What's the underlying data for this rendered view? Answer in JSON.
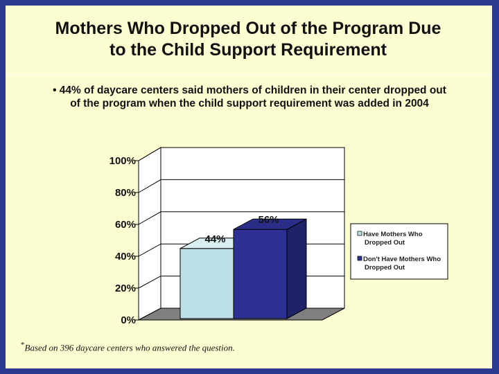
{
  "slide": {
    "title_line1": "Mothers Who Dropped Out of the Program Due",
    "title_line2": "to the Child Support Requirement",
    "bullet": "• 44% of daycare centers said mothers of children in their center dropped out of the program when the child support requirement was added in 2004",
    "footnote_mark": "*",
    "footnote": "Based on 396 daycare centers who answered the question."
  },
  "colors": {
    "background": "#2b3890",
    "slide": "#fdfdd2",
    "series1": "#bde0e6",
    "series2": "#2d3193",
    "floor": "#7f7f7f"
  },
  "chart_data": {
    "type": "bar",
    "categories": [
      ""
    ],
    "series": [
      {
        "name": "Have Mothers Who Dropped Out",
        "value": 44,
        "label": "44%"
      },
      {
        "name": "Don't Have Mothers Who Dropped Out",
        "value": 56,
        "label": "56%"
      }
    ],
    "ylim": [
      0,
      100
    ],
    "yticks": [
      "0%",
      "20%",
      "40%",
      "60%",
      "80%",
      "100%"
    ],
    "legend_position": "right",
    "style": "3d"
  }
}
